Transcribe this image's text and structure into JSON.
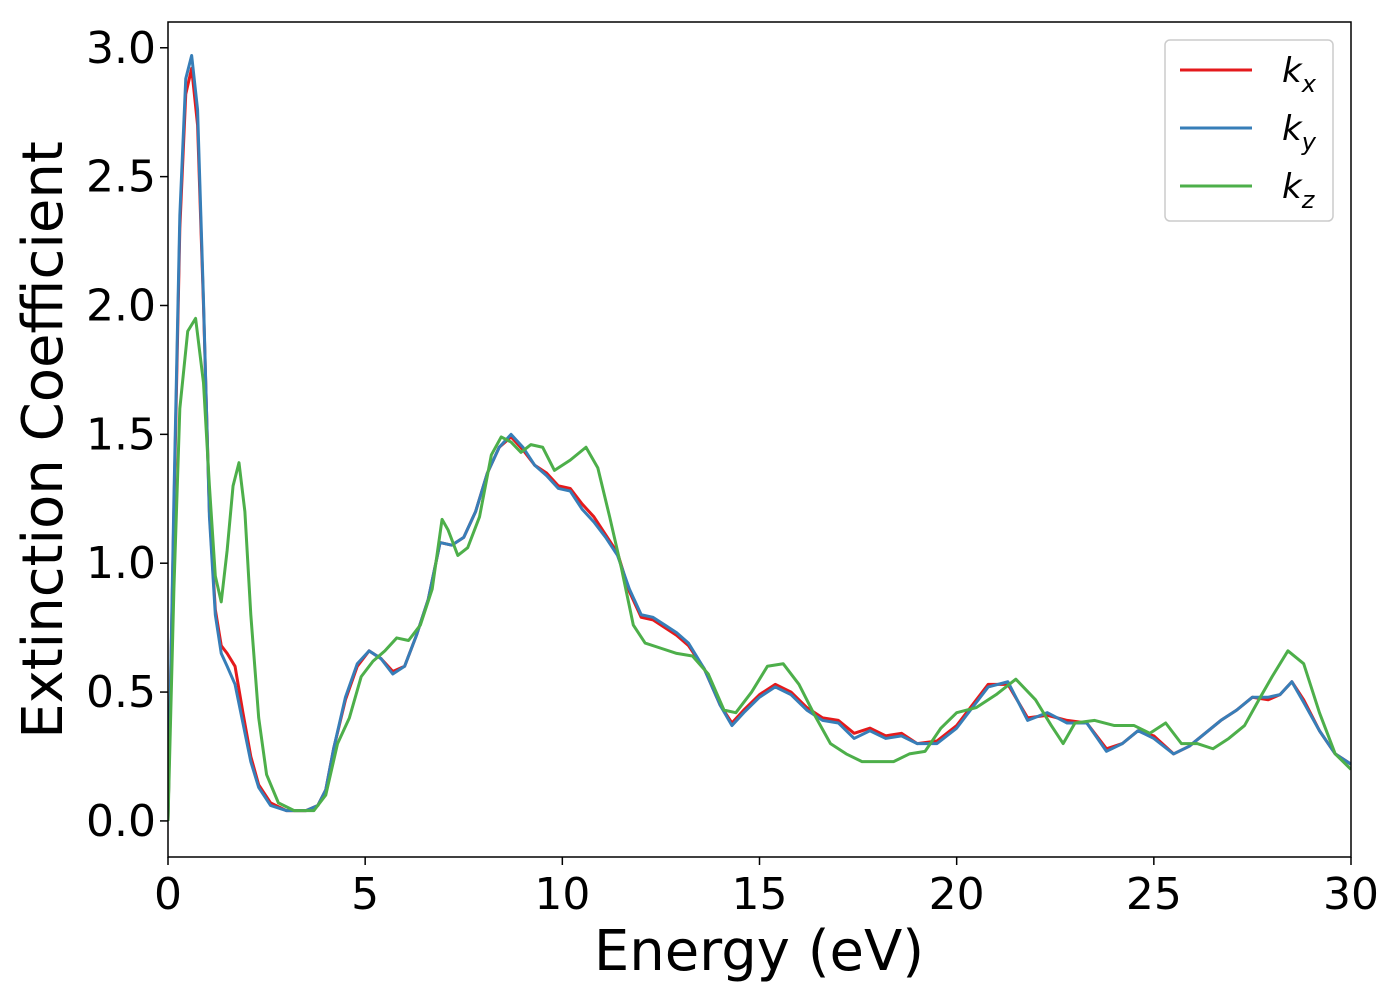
{
  "chart_data": {
    "type": "line",
    "title": "",
    "xlabel": "Energy (eV)",
    "ylabel": "Extinction Coefficient",
    "xlim": [
      0,
      30
    ],
    "ylim": [
      -0.14,
      3.1
    ],
    "xticks": [
      0,
      5,
      10,
      15,
      20,
      25,
      30
    ],
    "xtick_labels": [
      "0",
      "5",
      "10",
      "15",
      "20",
      "25",
      "30"
    ],
    "yticks": [
      0.0,
      0.5,
      1.0,
      1.5,
      2.0,
      2.5,
      3.0
    ],
    "ytick_labels": [
      "0.0",
      "0.5",
      "1.0",
      "1.5",
      "2.0",
      "2.5",
      "3.0"
    ],
    "grid": false,
    "legend_position": "top-right",
    "series": [
      {
        "name": "k_x",
        "label_main": "k",
        "label_sub": "x",
        "color": "#e41a1c",
        "points": [
          [
            0,
            0
          ],
          [
            0.15,
            1.2
          ],
          [
            0.3,
            2.3
          ],
          [
            0.45,
            2.82
          ],
          [
            0.6,
            2.92
          ],
          [
            0.75,
            2.7
          ],
          [
            0.9,
            2.0
          ],
          [
            1.05,
            1.2
          ],
          [
            1.2,
            0.82
          ],
          [
            1.35,
            0.68
          ],
          [
            1.5,
            0.65
          ],
          [
            1.7,
            0.6
          ],
          [
            1.9,
            0.42
          ],
          [
            2.1,
            0.25
          ],
          [
            2.3,
            0.14
          ],
          [
            2.6,
            0.07
          ],
          [
            3.0,
            0.04
          ],
          [
            3.5,
            0.04
          ],
          [
            3.8,
            0.06
          ],
          [
            4.0,
            0.12
          ],
          [
            4.2,
            0.28
          ],
          [
            4.5,
            0.47
          ],
          [
            4.8,
            0.6
          ],
          [
            5.1,
            0.66
          ],
          [
            5.4,
            0.63
          ],
          [
            5.7,
            0.58
          ],
          [
            6.0,
            0.6
          ],
          [
            6.3,
            0.72
          ],
          [
            6.6,
            0.86
          ],
          [
            6.9,
            1.08
          ],
          [
            7.2,
            1.07
          ],
          [
            7.5,
            1.1
          ],
          [
            7.8,
            1.2
          ],
          [
            8.1,
            1.35
          ],
          [
            8.4,
            1.45
          ],
          [
            8.7,
            1.49
          ],
          [
            9.0,
            1.44
          ],
          [
            9.3,
            1.38
          ],
          [
            9.6,
            1.35
          ],
          [
            9.9,
            1.3
          ],
          [
            10.2,
            1.29
          ],
          [
            10.5,
            1.23
          ],
          [
            10.8,
            1.18
          ],
          [
            11.1,
            1.11
          ],
          [
            11.4,
            1.04
          ],
          [
            11.7,
            0.89
          ],
          [
            12.0,
            0.79
          ],
          [
            12.3,
            0.78
          ],
          [
            12.6,
            0.75
          ],
          [
            12.9,
            0.72
          ],
          [
            13.2,
            0.68
          ],
          [
            13.6,
            0.59
          ],
          [
            14.0,
            0.45
          ],
          [
            14.3,
            0.38
          ],
          [
            14.6,
            0.43
          ],
          [
            15.0,
            0.49
          ],
          [
            15.4,
            0.53
          ],
          [
            15.8,
            0.5
          ],
          [
            16.2,
            0.44
          ],
          [
            16.6,
            0.4
          ],
          [
            17.0,
            0.39
          ],
          [
            17.4,
            0.34
          ],
          [
            17.8,
            0.36
          ],
          [
            18.2,
            0.33
          ],
          [
            18.6,
            0.34
          ],
          [
            19.0,
            0.3
          ],
          [
            19.5,
            0.31
          ],
          [
            20.0,
            0.37
          ],
          [
            20.4,
            0.45
          ],
          [
            20.8,
            0.53
          ],
          [
            21.3,
            0.53
          ],
          [
            21.8,
            0.4
          ],
          [
            22.3,
            0.41
          ],
          [
            22.8,
            0.39
          ],
          [
            23.3,
            0.38
          ],
          [
            23.8,
            0.28
          ],
          [
            24.2,
            0.3
          ],
          [
            24.6,
            0.35
          ],
          [
            25.0,
            0.33
          ],
          [
            25.5,
            0.26
          ],
          [
            25.9,
            0.29
          ],
          [
            26.3,
            0.34
          ],
          [
            26.7,
            0.39
          ],
          [
            27.1,
            0.43
          ],
          [
            27.5,
            0.48
          ],
          [
            27.9,
            0.47
          ],
          [
            28.2,
            0.49
          ],
          [
            28.5,
            0.54
          ],
          [
            28.8,
            0.47
          ],
          [
            29.2,
            0.35
          ],
          [
            29.6,
            0.26
          ],
          [
            30.0,
            0.22
          ]
        ]
      },
      {
        "name": "k_y",
        "label_main": "k",
        "label_sub": "y",
        "color": "#377eb8",
        "points": [
          [
            0,
            0
          ],
          [
            0.15,
            1.25
          ],
          [
            0.3,
            2.35
          ],
          [
            0.45,
            2.88
          ],
          [
            0.6,
            2.97
          ],
          [
            0.75,
            2.76
          ],
          [
            0.9,
            2.02
          ],
          [
            1.05,
            1.18
          ],
          [
            1.2,
            0.8
          ],
          [
            1.35,
            0.65
          ],
          [
            1.5,
            0.6
          ],
          [
            1.7,
            0.53
          ],
          [
            1.9,
            0.38
          ],
          [
            2.1,
            0.23
          ],
          [
            2.3,
            0.13
          ],
          [
            2.6,
            0.06
          ],
          [
            3.0,
            0.04
          ],
          [
            3.5,
            0.04
          ],
          [
            3.8,
            0.06
          ],
          [
            4.0,
            0.12
          ],
          [
            4.2,
            0.28
          ],
          [
            4.5,
            0.48
          ],
          [
            4.8,
            0.61
          ],
          [
            5.1,
            0.66
          ],
          [
            5.4,
            0.63
          ],
          [
            5.7,
            0.57
          ],
          [
            6.0,
            0.6
          ],
          [
            6.3,
            0.72
          ],
          [
            6.6,
            0.86
          ],
          [
            6.9,
            1.08
          ],
          [
            7.2,
            1.07
          ],
          [
            7.5,
            1.1
          ],
          [
            7.8,
            1.2
          ],
          [
            8.1,
            1.35
          ],
          [
            8.4,
            1.45
          ],
          [
            8.7,
            1.5
          ],
          [
            9.0,
            1.45
          ],
          [
            9.3,
            1.38
          ],
          [
            9.6,
            1.34
          ],
          [
            9.9,
            1.29
          ],
          [
            10.2,
            1.28
          ],
          [
            10.5,
            1.21
          ],
          [
            10.8,
            1.16
          ],
          [
            11.1,
            1.1
          ],
          [
            11.4,
            1.03
          ],
          [
            11.7,
            0.9
          ],
          [
            12.0,
            0.8
          ],
          [
            12.3,
            0.79
          ],
          [
            12.6,
            0.76
          ],
          [
            12.9,
            0.73
          ],
          [
            13.2,
            0.69
          ],
          [
            13.6,
            0.59
          ],
          [
            14.0,
            0.45
          ],
          [
            14.3,
            0.37
          ],
          [
            14.6,
            0.42
          ],
          [
            15.0,
            0.48
          ],
          [
            15.4,
            0.52
          ],
          [
            15.8,
            0.49
          ],
          [
            16.2,
            0.43
          ],
          [
            16.6,
            0.39
          ],
          [
            17.0,
            0.38
          ],
          [
            17.4,
            0.32
          ],
          [
            17.8,
            0.35
          ],
          [
            18.2,
            0.32
          ],
          [
            18.6,
            0.33
          ],
          [
            19.0,
            0.3
          ],
          [
            19.5,
            0.3
          ],
          [
            20.0,
            0.36
          ],
          [
            20.4,
            0.44
          ],
          [
            20.8,
            0.52
          ],
          [
            21.3,
            0.54
          ],
          [
            21.8,
            0.39
          ],
          [
            22.3,
            0.42
          ],
          [
            22.8,
            0.38
          ],
          [
            23.3,
            0.38
          ],
          [
            23.8,
            0.27
          ],
          [
            24.2,
            0.3
          ],
          [
            24.6,
            0.35
          ],
          [
            25.0,
            0.32
          ],
          [
            25.5,
            0.26
          ],
          [
            25.9,
            0.29
          ],
          [
            26.3,
            0.34
          ],
          [
            26.7,
            0.39
          ],
          [
            27.1,
            0.43
          ],
          [
            27.5,
            0.48
          ],
          [
            27.9,
            0.48
          ],
          [
            28.2,
            0.49
          ],
          [
            28.5,
            0.54
          ],
          [
            28.8,
            0.46
          ],
          [
            29.2,
            0.35
          ],
          [
            29.6,
            0.26
          ],
          [
            30.0,
            0.22
          ]
        ]
      },
      {
        "name": "k_z",
        "label_main": "k",
        "label_sub": "z",
        "color": "#4daf4a",
        "points": [
          [
            0,
            0
          ],
          [
            0.15,
            0.9
          ],
          [
            0.3,
            1.6
          ],
          [
            0.5,
            1.9
          ],
          [
            0.7,
            1.95
          ],
          [
            0.9,
            1.7
          ],
          [
            1.05,
            1.3
          ],
          [
            1.2,
            0.95
          ],
          [
            1.35,
            0.85
          ],
          [
            1.5,
            1.05
          ],
          [
            1.65,
            1.3
          ],
          [
            1.8,
            1.39
          ],
          [
            1.95,
            1.2
          ],
          [
            2.1,
            0.8
          ],
          [
            2.3,
            0.4
          ],
          [
            2.5,
            0.18
          ],
          [
            2.8,
            0.07
          ],
          [
            3.2,
            0.04
          ],
          [
            3.7,
            0.04
          ],
          [
            4.0,
            0.1
          ],
          [
            4.3,
            0.3
          ],
          [
            4.6,
            0.4
          ],
          [
            4.9,
            0.56
          ],
          [
            5.2,
            0.62
          ],
          [
            5.5,
            0.66
          ],
          [
            5.8,
            0.71
          ],
          [
            6.1,
            0.7
          ],
          [
            6.4,
            0.76
          ],
          [
            6.7,
            0.9
          ],
          [
            6.95,
            1.17
          ],
          [
            7.1,
            1.13
          ],
          [
            7.35,
            1.03
          ],
          [
            7.6,
            1.06
          ],
          [
            7.9,
            1.18
          ],
          [
            8.2,
            1.42
          ],
          [
            8.45,
            1.49
          ],
          [
            8.7,
            1.47
          ],
          [
            8.95,
            1.43
          ],
          [
            9.2,
            1.46
          ],
          [
            9.5,
            1.45
          ],
          [
            9.8,
            1.36
          ],
          [
            10.2,
            1.4
          ],
          [
            10.6,
            1.45
          ],
          [
            10.9,
            1.37
          ],
          [
            11.2,
            1.18
          ],
          [
            11.5,
            0.98
          ],
          [
            11.8,
            0.76
          ],
          [
            12.1,
            0.69
          ],
          [
            12.5,
            0.67
          ],
          [
            12.9,
            0.65
          ],
          [
            13.3,
            0.64
          ],
          [
            13.7,
            0.57
          ],
          [
            14.1,
            0.43
          ],
          [
            14.4,
            0.42
          ],
          [
            14.8,
            0.5
          ],
          [
            15.2,
            0.6
          ],
          [
            15.6,
            0.61
          ],
          [
            16.0,
            0.53
          ],
          [
            16.4,
            0.41
          ],
          [
            16.8,
            0.3
          ],
          [
            17.2,
            0.26
          ],
          [
            17.6,
            0.23
          ],
          [
            18.0,
            0.23
          ],
          [
            18.4,
            0.23
          ],
          [
            18.8,
            0.26
          ],
          [
            19.2,
            0.27
          ],
          [
            19.6,
            0.36
          ],
          [
            20.0,
            0.42
          ],
          [
            20.5,
            0.44
          ],
          [
            21.0,
            0.49
          ],
          [
            21.5,
            0.55
          ],
          [
            22.0,
            0.47
          ],
          [
            22.4,
            0.37
          ],
          [
            22.7,
            0.3
          ],
          [
            23.0,
            0.38
          ],
          [
            23.5,
            0.39
          ],
          [
            24.0,
            0.37
          ],
          [
            24.5,
            0.37
          ],
          [
            24.9,
            0.34
          ],
          [
            25.3,
            0.38
          ],
          [
            25.7,
            0.3
          ],
          [
            26.1,
            0.3
          ],
          [
            26.5,
            0.28
          ],
          [
            26.9,
            0.32
          ],
          [
            27.3,
            0.37
          ],
          [
            27.7,
            0.48
          ],
          [
            28.0,
            0.56
          ],
          [
            28.4,
            0.66
          ],
          [
            28.8,
            0.61
          ],
          [
            29.2,
            0.42
          ],
          [
            29.6,
            0.26
          ],
          [
            30.0,
            0.2
          ]
        ]
      }
    ]
  }
}
